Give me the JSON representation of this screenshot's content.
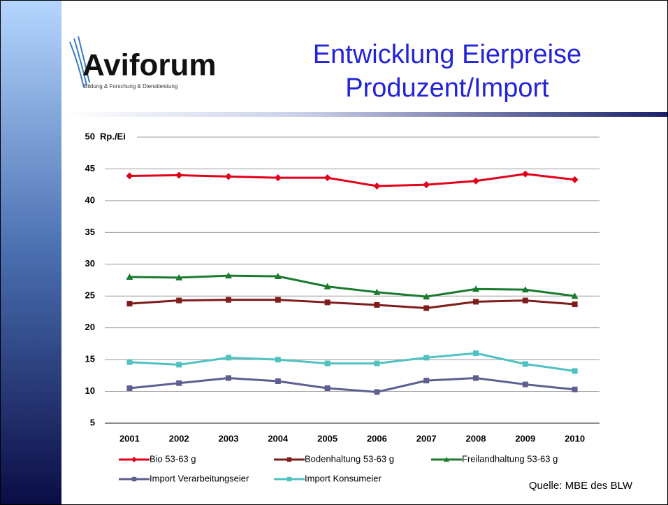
{
  "header": {
    "logo": "Aviforum",
    "logo_tagline": "Bildung & Forschung & Dienstleistung",
    "title_lines": [
      "Entwicklung Eierpreise",
      "Produzent/Import"
    ]
  },
  "chart_data": {
    "type": "line",
    "y_label": "Rp./Ei",
    "categories": [
      "2001",
      "2002",
      "2003",
      "2004",
      "2005",
      "2006",
      "2007",
      "2008",
      "2009",
      "2010"
    ],
    "series": [
      {
        "name": "Bio 53-63 g",
        "color": "#e2001a",
        "marker": "diamond",
        "values": [
          43.9,
          44.0,
          43.8,
          43.6,
          43.6,
          42.3,
          42.5,
          43.1,
          44.2,
          43.3
        ]
      },
      {
        "name": "Bodenhaltung 53-63 g",
        "color": "#7f1c1c",
        "marker": "square",
        "values": [
          23.8,
          24.3,
          24.4,
          24.4,
          24.0,
          23.6,
          23.1,
          24.1,
          24.3,
          23.7
        ]
      },
      {
        "name": "Freilandhaltung 53-63 g",
        "color": "#1a7a2e",
        "marker": "triangle",
        "values": [
          28.0,
          27.9,
          28.2,
          28.1,
          26.5,
          25.6,
          24.9,
          26.1,
          26.0,
          25.0
        ]
      },
      {
        "name": "Import Verarbeitungseier",
        "color": "#5c5f8f",
        "marker": "square",
        "values": [
          10.5,
          11.3,
          12.1,
          11.6,
          10.5,
          9.9,
          11.7,
          12.1,
          11.1,
          10.3
        ]
      },
      {
        "name": "Import Konsumeier",
        "color": "#4fc1c1",
        "marker": "square",
        "values": [
          14.6,
          14.2,
          15.3,
          15.0,
          14.4,
          14.4,
          15.3,
          16.0,
          14.3,
          13.2
        ]
      }
    ],
    "ylim": [
      5,
      50
    ],
    "yticks": [
      5,
      10,
      15,
      20,
      25,
      30,
      35,
      40,
      45,
      50
    ],
    "grid": true
  },
  "source": "Quelle: MBE des BLW"
}
